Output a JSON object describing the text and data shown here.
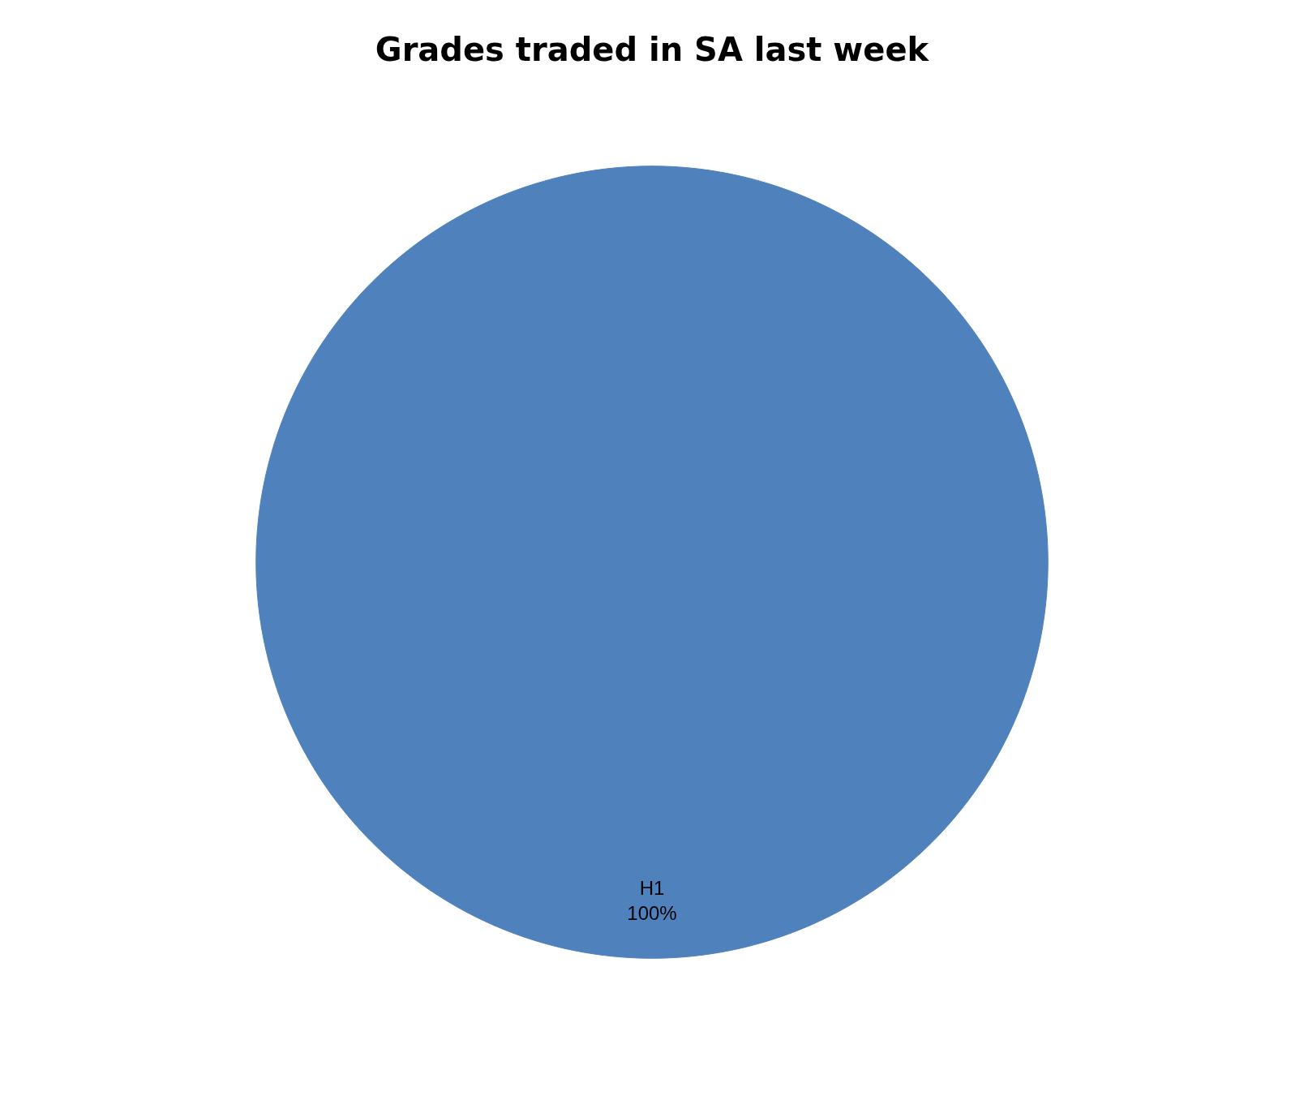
{
  "chart_data": {
    "type": "pie",
    "title": "Grades traded in SA last week",
    "categories": [
      "H1"
    ],
    "values": [
      100
    ],
    "colors": [
      "#4f81bd"
    ],
    "value_labels": [
      "100%"
    ],
    "legend": false
  }
}
